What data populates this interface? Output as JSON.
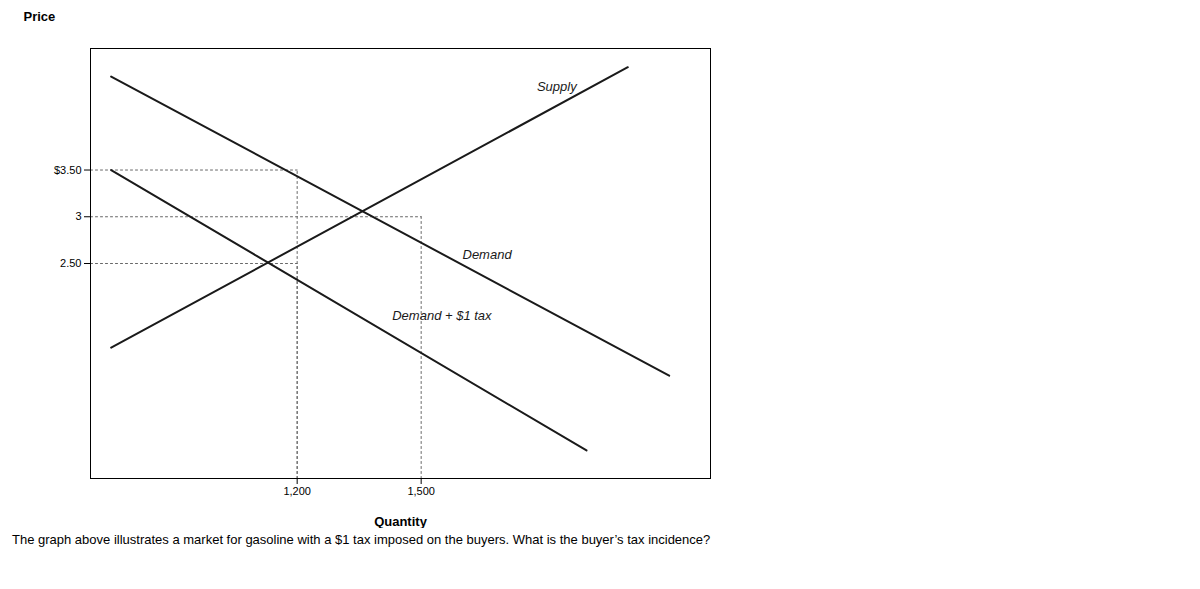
{
  "chart_data": {
    "type": "line",
    "xlabel": "Quantity",
    "ylabel": "Price",
    "caption": "The graph above illustrates a market for gasoline with a $1 tax imposed on the buyers. What is the buyer’s tax incidence?",
    "xlim": [
      700,
      2200
    ],
    "ylim": [
      0.2,
      4.8
    ],
    "xticks": [
      {
        "value": 1200,
        "label": "1,200"
      },
      {
        "value": 1500,
        "label": "1,500"
      }
    ],
    "yticks": [
      {
        "value": 2.5,
        "label": "2.50"
      },
      3,
      {
        "value": 3.5,
        "label": "$3.50"
      }
    ],
    "grid": false,
    "series": [
      {
        "color": "#1a1a1a",
        "x": [
          750,
          2000
        ],
        "values": [
          1.6,
          4.6
        ]
      },
      {
        "color": "#1a1a1a",
        "x": [
          750,
          2100
        ],
        "values": [
          4.5,
          1.3
        ]
      },
      {
        "color": "#1a1a1a",
        "x": [
          750,
          1900
        ],
        "values": [
          3.5,
          0.5
        ]
      }
    ],
    "guides": {
      "color": "#666666",
      "line_style": "dotted",
      "points": [
        {
          "x": 1200,
          "y": 3.5
        },
        {
          "x": 1500,
          "y": 3.0
        },
        {
          "x": 1200,
          "y": 2.5
        }
      ]
    },
    "annotations": [
      {
        "text": "Supply",
        "x": 1780,
        "y": 4.35
      },
      {
        "text": "Demand",
        "x": 1600,
        "y": 2.55
      },
      {
        "text": "Demand + $1 tax",
        "x": 1430,
        "y": 1.9
      }
    ]
  }
}
